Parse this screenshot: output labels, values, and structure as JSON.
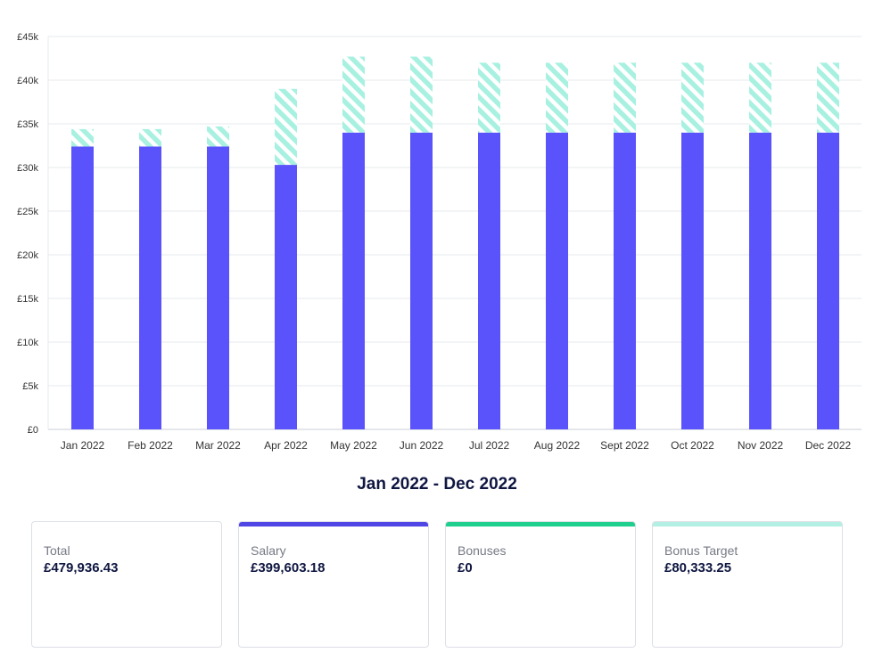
{
  "chart_data": {
    "type": "bar",
    "stacked": true,
    "categories": [
      "Jan 2022",
      "Feb 2022",
      "Mar 2022",
      "Apr 2022",
      "May 2022",
      "Jun 2022",
      "Jul 2022",
      "Aug 2022",
      "Sept 2022",
      "Oct 2022",
      "Nov 2022",
      "Dec 2022"
    ],
    "series": [
      {
        "name": "Salary",
        "color": "#5a52fa",
        "pattern": "solid",
        "values": [
          32400,
          32400,
          32400,
          30300,
          34000,
          34000,
          34000,
          34000,
          34000,
          34000,
          34000,
          34000
        ]
      },
      {
        "name": "Bonus Target",
        "color": "#a8f1e1",
        "pattern": "diagonal-stripes",
        "values": [
          2000,
          2000,
          2300,
          8700,
          8700,
          8700,
          8000,
          8000,
          8000,
          8000,
          8000,
          8000
        ]
      }
    ],
    "ylim": [
      0,
      45000
    ],
    "yticks": [
      0,
      5000,
      10000,
      15000,
      20000,
      25000,
      30000,
      35000,
      40000,
      45000
    ],
    "ytick_labels": [
      "£0",
      "£5k",
      "£10k",
      "£15k",
      "£20k",
      "£25k",
      "£30k",
      "£35k",
      "£40k",
      "£45k"
    ],
    "grid": true
  },
  "summary": {
    "period": "Jan 2022 - Dec 2022",
    "cards": [
      {
        "label": "Total",
        "value": "£479,936.43",
        "accent": ""
      },
      {
        "label": "Salary",
        "value": "£399,603.18",
        "accent": "#4f46e5"
      },
      {
        "label": "Bonuses",
        "value": "£0",
        "accent": "#1ecf8e"
      },
      {
        "label": "Bonus Target",
        "value": "£80,333.25",
        "accent": "#b3efe2"
      }
    ]
  }
}
